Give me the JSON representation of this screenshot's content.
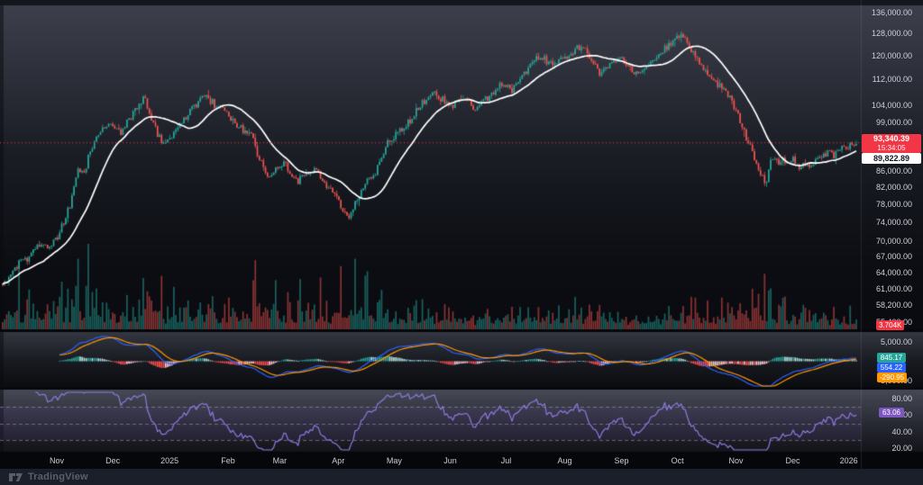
{
  "app": {
    "watermark": "TradingView"
  },
  "colors": {
    "up": "#26a69a",
    "down": "#ef5350",
    "vol_up": "rgba(38,166,154,0.55)",
    "vol_down": "rgba(239,83,80,0.55)",
    "ma_line": "#ffffff",
    "price_line": "#f23645",
    "macd_line": "#2962ff",
    "signal_line": "#ff9800",
    "hist_grow_above": "#26a69a",
    "hist_fall_above": "#b2dfdb",
    "hist_fall_below": "#ff5252",
    "hist_grow_below": "#ffcdd2",
    "rsi_line": "#8d7ae0",
    "rsi_band": "rgba(126,87,194,0.10)",
    "rsi_level_line": "rgba(160,163,176,0.55)",
    "badge_price_bg": "#f23645",
    "badge_vol_bg": "#f23645",
    "badge_hist_bg": "#26a69a",
    "badge_macd_bg": "#2962ff",
    "badge_signal_bg": "#ff9800",
    "badge_rsi_bg": "#7e57c2"
  },
  "badges": {
    "price": {
      "value": "93,340.39",
      "countdown": "15:34:05"
    },
    "ma": {
      "value": "89,822.89"
    },
    "volume": {
      "value": "3.704K"
    },
    "macd_hist": {
      "value": "845.17"
    },
    "macd_line": {
      "value": "554.22"
    },
    "macd_signal": {
      "value": "-290.95"
    },
    "rsi": {
      "value": "63.06"
    }
  },
  "chart_data": {
    "type": "candlestick",
    "scale": "logarithmic",
    "candles_count": 420,
    "seed": 11,
    "price_pane": {
      "axis_labels": [
        {
          "price": 136000,
          "text": "136,000.00"
        },
        {
          "price": 128000,
          "text": "128,000.00"
        },
        {
          "price": 120000,
          "text": "120,000.00"
        },
        {
          "price": 112000,
          "text": "112,000.00"
        },
        {
          "price": 104000,
          "text": "104,000.00"
        },
        {
          "price": 99000,
          "text": "99,000.00"
        },
        {
          "price": 94000,
          "text": "94,000.00"
        },
        {
          "price": 86000,
          "text": "86,000.00"
        },
        {
          "price": 82000,
          "text": "82,000.00"
        },
        {
          "price": 78000,
          "text": "78,000.00"
        },
        {
          "price": 74000,
          "text": "74,000.00"
        },
        {
          "price": 70000,
          "text": "70,000.00"
        },
        {
          "price": 67000,
          "text": "67,000.00"
        },
        {
          "price": 64000,
          "text": "64,000.00"
        },
        {
          "price": 61000,
          "text": "61,000.00"
        },
        {
          "price": 58200,
          "text": "58,200.00"
        },
        {
          "price": 55400,
          "text": "55,400.00"
        }
      ],
      "last_price": 93340.39,
      "price_line_value": 93340.39,
      "ma_period": 21,
      "ma_last": 89822.89,
      "price_path": [
        [
          0.0,
          61800
        ],
        [
          0.01,
          63500
        ],
        [
          0.021,
          66000
        ],
        [
          0.031,
          67000
        ],
        [
          0.042,
          69500
        ],
        [
          0.052,
          68500
        ],
        [
          0.063,
          70500
        ],
        [
          0.073,
          74500
        ],
        [
          0.079,
          78000
        ],
        [
          0.084,
          82500
        ],
        [
          0.089,
          86500
        ],
        [
          0.095,
          84500
        ],
        [
          0.1,
          89500
        ],
        [
          0.105,
          91500
        ],
        [
          0.11,
          95500
        ],
        [
          0.117,
          97000
        ],
        [
          0.124,
          99500
        ],
        [
          0.131,
          97500
        ],
        [
          0.138,
          96000
        ],
        [
          0.145,
          98500
        ],
        [
          0.152,
          101500
        ],
        [
          0.16,
          104000
        ],
        [
          0.166,
          106000
        ],
        [
          0.172,
          101500
        ],
        [
          0.178,
          97500
        ],
        [
          0.184,
          94500
        ],
        [
          0.19,
          93500
        ],
        [
          0.197,
          95000
        ],
        [
          0.204,
          96500
        ],
        [
          0.212,
          99500
        ],
        [
          0.22,
          102000
        ],
        [
          0.228,
          104500
        ],
        [
          0.236,
          106500
        ],
        [
          0.244,
          105000
        ],
        [
          0.252,
          103500
        ],
        [
          0.26,
          102000
        ],
        [
          0.268,
          100000
        ],
        [
          0.276,
          98000
        ],
        [
          0.284,
          96500
        ],
        [
          0.292,
          96000
        ],
        [
          0.299,
          90000
        ],
        [
          0.306,
          86000
        ],
        [
          0.314,
          84000
        ],
        [
          0.322,
          86500
        ],
        [
          0.33,
          88000
        ],
        [
          0.338,
          85500
        ],
        [
          0.346,
          83500
        ],
        [
          0.354,
          84500
        ],
        [
          0.362,
          86500
        ],
        [
          0.37,
          85000
        ],
        [
          0.378,
          82500
        ],
        [
          0.386,
          81500
        ],
        [
          0.394,
          78500
        ],
        [
          0.401,
          76000
        ],
        [
          0.407,
          74900
        ],
        [
          0.413,
          78000
        ],
        [
          0.42,
          81500
        ],
        [
          0.428,
          84000
        ],
        [
          0.436,
          85500
        ],
        [
          0.444,
          88500
        ],
        [
          0.452,
          93500
        ],
        [
          0.46,
          95500
        ],
        [
          0.468,
          97000
        ],
        [
          0.476,
          99000
        ],
        [
          0.484,
          102500
        ],
        [
          0.492,
          105000
        ],
        [
          0.5,
          106500
        ],
        [
          0.508,
          107500
        ],
        [
          0.516,
          105500
        ],
        [
          0.524,
          103500
        ],
        [
          0.532,
          104500
        ],
        [
          0.54,
          106000
        ],
        [
          0.548,
          104000
        ],
        [
          0.556,
          103000
        ],
        [
          0.564,
          105500
        ],
        [
          0.572,
          107000
        ],
        [
          0.58,
          109500
        ],
        [
          0.588,
          111000
        ],
        [
          0.596,
          108500
        ],
        [
          0.604,
          110500
        ],
        [
          0.612,
          114000
        ],
        [
          0.62,
          117500
        ],
        [
          0.628,
          119500
        ],
        [
          0.636,
          118500
        ],
        [
          0.644,
          117000
        ],
        [
          0.652,
          118500
        ],
        [
          0.66,
          120000
        ],
        [
          0.668,
          121500
        ],
        [
          0.676,
          123000
        ],
        [
          0.681,
          123800
        ],
        [
          0.687,
          119500
        ],
        [
          0.694,
          116000
        ],
        [
          0.701,
          114000
        ],
        [
          0.708,
          116000
        ],
        [
          0.715,
          118500
        ],
        [
          0.722,
          119500
        ],
        [
          0.729,
          117500
        ],
        [
          0.736,
          115000
        ],
        [
          0.743,
          113500
        ],
        [
          0.75,
          115500
        ],
        [
          0.757,
          117500
        ],
        [
          0.764,
          119000
        ],
        [
          0.771,
          121000
        ],
        [
          0.778,
          123000
        ],
        [
          0.785,
          125000
        ],
        [
          0.792,
          126500
        ],
        [
          0.799,
          127200
        ],
        [
          0.804,
          123500
        ],
        [
          0.81,
          120500
        ],
        [
          0.817,
          117500
        ],
        [
          0.824,
          115000
        ],
        [
          0.831,
          112500
        ],
        [
          0.838,
          110500
        ],
        [
          0.845,
          108500
        ],
        [
          0.852,
          106000
        ],
        [
          0.858,
          103000
        ],
        [
          0.863,
          99500
        ],
        [
          0.868,
          96500
        ],
        [
          0.873,
          93500
        ],
        [
          0.878,
          90500
        ],
        [
          0.883,
          87000
        ],
        [
          0.889,
          84500
        ],
        [
          0.894,
          83200
        ],
        [
          0.899,
          87500
        ],
        [
          0.904,
          90000
        ],
        [
          0.909,
          88000
        ],
        [
          0.914,
          89500
        ],
        [
          0.919,
          88000
        ],
        [
          0.924,
          89000
        ],
        [
          0.929,
          88000
        ],
        [
          0.934,
          86800
        ],
        [
          0.939,
          87800
        ],
        [
          0.944,
          87200
        ],
        [
          0.949,
          88200
        ],
        [
          0.954,
          89500
        ],
        [
          0.959,
          88800
        ],
        [
          0.964,
          89800
        ],
        [
          0.969,
          90800
        ],
        [
          0.974,
          90000
        ],
        [
          0.979,
          90800
        ],
        [
          0.984,
          91500
        ],
        [
          0.989,
          92300
        ],
        [
          0.994,
          92800
        ],
        [
          1.0,
          93340
        ]
      ]
    },
    "volume_pane": {
      "last_value": "3.704K",
      "boost": [
        [
          0,
          1.6
        ],
        [
          0.05,
          1.3
        ],
        [
          0.09,
          2.1
        ],
        [
          0.14,
          1.6
        ],
        [
          0.2,
          1.2
        ],
        [
          0.26,
          1.3
        ],
        [
          0.3,
          1.9
        ],
        [
          0.35,
          1.5
        ],
        [
          0.4,
          1.6
        ],
        [
          0.425,
          2.1
        ],
        [
          0.46,
          1.2
        ],
        [
          0.52,
          0.9
        ],
        [
          0.58,
          0.9
        ],
        [
          0.64,
          1.0
        ],
        [
          0.7,
          1.1
        ],
        [
          0.75,
          0.8
        ],
        [
          0.8,
          1.4
        ],
        [
          0.85,
          1.0
        ],
        [
          0.895,
          2.0
        ],
        [
          0.93,
          0.9
        ],
        [
          0.97,
          0.8
        ],
        [
          1,
          0.9
        ]
      ]
    },
    "macd_pane": {
      "axis_labels": [
        {
          "value": 5000,
          "text": "5,000.00"
        },
        {
          "value": -5000,
          "text": "-5,000.00"
        }
      ],
      "fast": 12,
      "slow": 26,
      "signal": 9,
      "last": {
        "hist": 845.17,
        "macd": 554.22,
        "signal": -290.95
      }
    },
    "rsi_pane": {
      "axis_labels": [
        {
          "value": 80,
          "text": "80.00"
        },
        {
          "value": 60,
          "text": "60.00"
        },
        {
          "value": 40,
          "text": "40.00"
        },
        {
          "value": 20,
          "text": "20.00"
        }
      ],
      "period": 14,
      "levels": [
        70,
        50,
        30
      ],
      "last": 63.06
    },
    "time_axis": [
      {
        "t": 0.066,
        "text": "Nov"
      },
      {
        "t": 0.131,
        "text": "Dec"
      },
      {
        "t": 0.197,
        "text": "2025"
      },
      {
        "t": 0.265,
        "text": "Feb"
      },
      {
        "t": 0.325,
        "text": "Mar"
      },
      {
        "t": 0.393,
        "text": "Apr"
      },
      {
        "t": 0.458,
        "text": "May"
      },
      {
        "t": 0.523,
        "text": "Jun"
      },
      {
        "t": 0.588,
        "text": "Jul"
      },
      {
        "t": 0.656,
        "text": "Aug"
      },
      {
        "t": 0.722,
        "text": "Sep"
      },
      {
        "t": 0.787,
        "text": "Oct"
      },
      {
        "t": 0.855,
        "text": "Nov"
      },
      {
        "t": 0.921,
        "text": "Dec"
      },
      {
        "t": 0.986,
        "text": "2026"
      }
    ]
  }
}
